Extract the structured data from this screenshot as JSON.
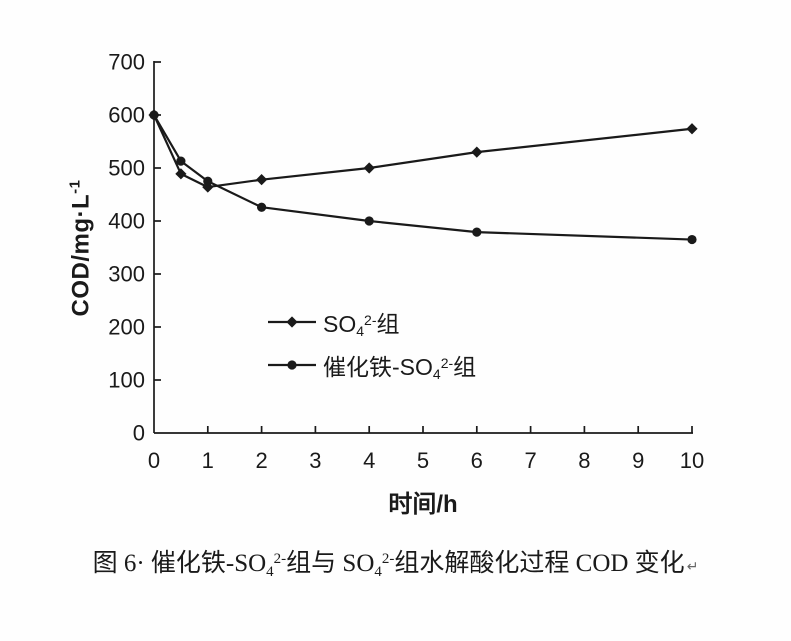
{
  "colors": {
    "line": "#1a1a1a",
    "text": "#1a1a1a",
    "background": "#fefefe"
  },
  "chart_data": {
    "type": "line",
    "title": "",
    "xlabel": "时间/h",
    "ylabel": "COD/mg·L⁻¹",
    "ylabel_parts": {
      "base": "COD/mg·L",
      "sup": "-1"
    },
    "xlim": [
      0,
      10
    ],
    "ylim": [
      0,
      700
    ],
    "xticks": [
      0,
      1,
      2,
      3,
      4,
      5,
      6,
      7,
      8,
      9,
      10
    ],
    "yticks": [
      0,
      100,
      200,
      300,
      400,
      500,
      600,
      700
    ],
    "grid": false,
    "legend_position": "inside-left-center",
    "x": [
      0,
      0.5,
      1,
      2,
      4,
      6,
      10
    ],
    "series": [
      {
        "name": "SO₄²⁻组",
        "name_parts": {
          "prefix": "SO",
          "sub": "4",
          "sup": "2-",
          "suffix": "组"
        },
        "marker": "diamond",
        "color": "#1a1a1a",
        "values": [
          600,
          489,
          464,
          478,
          500,
          530,
          574
        ]
      },
      {
        "name": "催化铁-SO₄²⁻组",
        "name_parts": {
          "prefix": "催化铁-SO",
          "sub": "4",
          "sup": "2-",
          "suffix": "组"
        },
        "marker": "circle",
        "color": "#1a1a1a",
        "values": [
          600,
          513,
          475,
          426,
          400,
          379,
          365
        ]
      }
    ]
  },
  "figure": {
    "caption": {
      "full": "图 6· 催化铁-SO42-组与 SO42-组水解酸化过程 COD 变化",
      "parts": [
        {
          "t": "图 6· 催化铁-SO"
        },
        {
          "t": "4"
        },
        {
          "t": "2-"
        },
        {
          "t": "组与 SO"
        },
        {
          "t": "4"
        },
        {
          "t": "2-"
        },
        {
          "t": "组水解酸化过程 COD 变化"
        }
      ],
      "return_mark": "↵"
    }
  }
}
